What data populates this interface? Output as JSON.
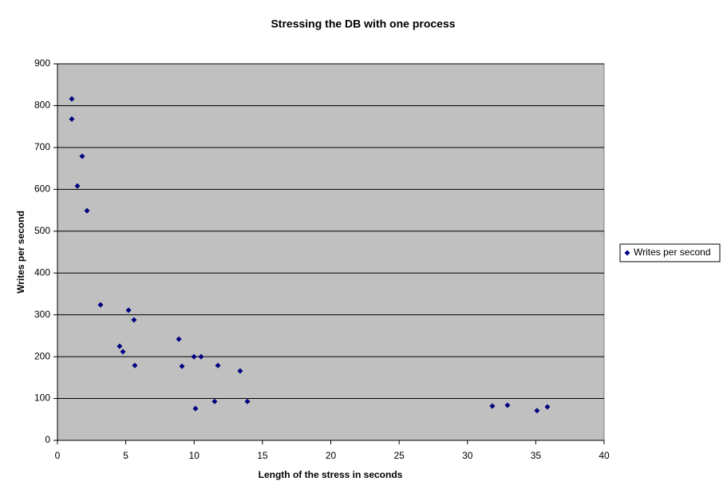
{
  "chart_data": {
    "type": "scatter",
    "title": "Stressing the DB with one process",
    "x_label": "Length of the stress in seconds",
    "y_label": "Writes per second",
    "series": [
      {
        "name": "Writes per second",
        "color": "#000080",
        "x": [
          1.05,
          1.05,
          1.81,
          1.46,
          2.16,
          3.15,
          4.55,
          4.79,
          5.2,
          5.6,
          5.66,
          8.88,
          9.11,
          9.99,
          10.51,
          10.1,
          11.74,
          11.5,
          13.37,
          13.9,
          31.82,
          32.93,
          35.09,
          35.85
        ],
        "values": [
          816,
          768,
          679,
          608,
          549,
          324,
          225,
          212,
          311,
          288,
          179,
          242,
          177,
          200,
          200,
          76,
          179,
          93,
          166,
          93,
          82,
          84,
          71,
          80
        ]
      }
    ],
    "xlim": [
      0,
      40
    ],
    "xticks": [
      0,
      5,
      10,
      15,
      20,
      25,
      30,
      35,
      40
    ],
    "ylim": [
      0,
      900
    ],
    "yticks": [
      0,
      100,
      200,
      300,
      400,
      500,
      600,
      700,
      800,
      900
    ],
    "grid": true,
    "legend": "right"
  }
}
